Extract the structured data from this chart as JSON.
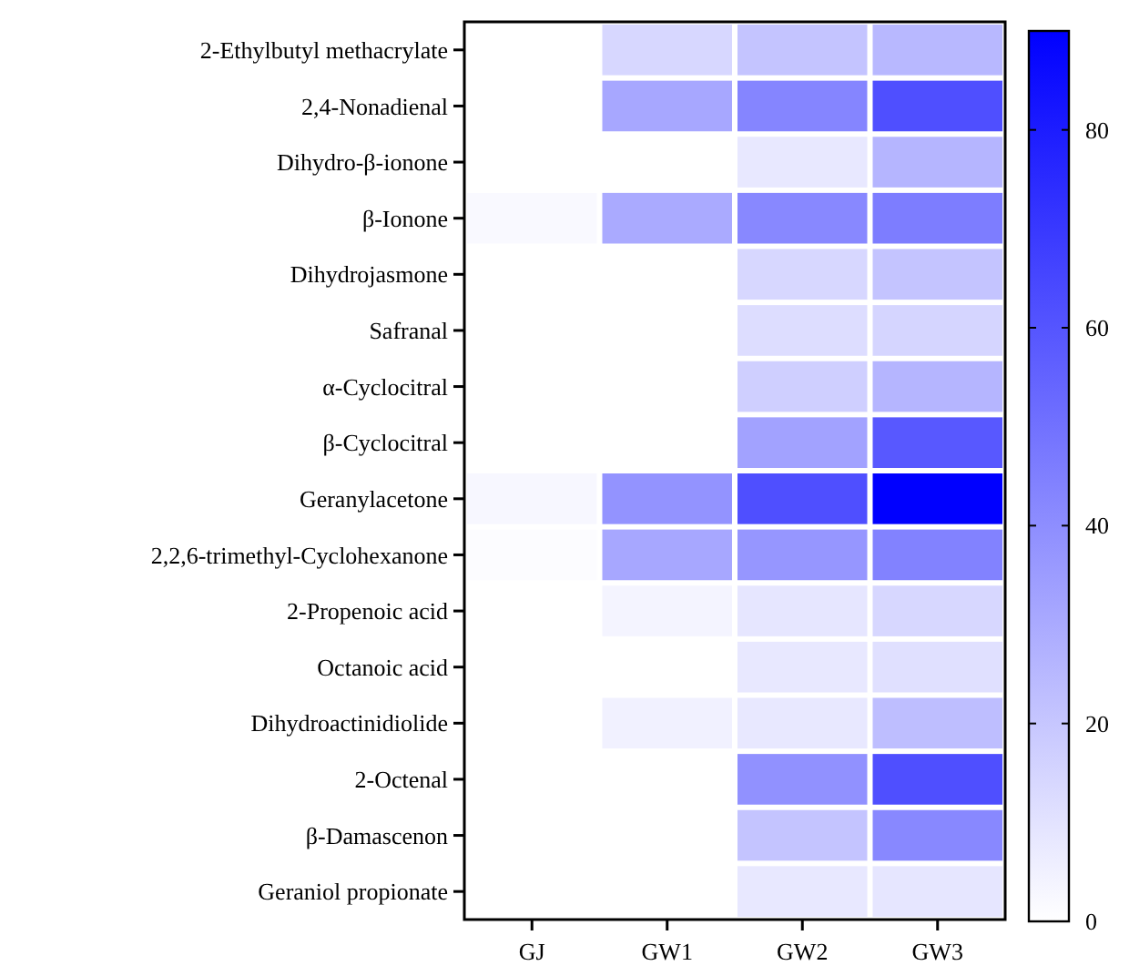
{
  "chart_data": {
    "type": "heatmap",
    "categories": [
      "GJ",
      "GW1",
      "GW2",
      "GW3"
    ],
    "y_categories": [
      "2-Ethylbutyl methacrylate",
      "2,4-Nonadienal",
      "Dihydro-β-ionone",
      "β-Ionone",
      "Dihydrojasmone",
      "Safranal",
      "α-Cyclocitral",
      "β-Cyclocitral",
      "Geranylacetone",
      "2,2,6-trimethyl-Cyclohexanone",
      "2-Propenoic acid",
      "Octanoic acid",
      "Dihydroactinidiolide",
      "2-Octenal",
      "β-Damascenon",
      "Geraniol propionate"
    ],
    "cells": [
      [
        0,
        14,
        21,
        25
      ],
      [
        0,
        31,
        43,
        62
      ],
      [
        0,
        0,
        8,
        26
      ],
      [
        2,
        30,
        42,
        46
      ],
      [
        0,
        0,
        14,
        21
      ],
      [
        0,
        0,
        12,
        15
      ],
      [
        0,
        0,
        17,
        26
      ],
      [
        0,
        0,
        33,
        59
      ],
      [
        3,
        38,
        62,
        90
      ],
      [
        1,
        31,
        37,
        44
      ],
      [
        0,
        4,
        9,
        14
      ],
      [
        0,
        0,
        8,
        11
      ],
      [
        0,
        5,
        8,
        23
      ],
      [
        0,
        0,
        39,
        62
      ],
      [
        0,
        0,
        21,
        42
      ],
      [
        0,
        0,
        8,
        9
      ]
    ],
    "clim": [
      0,
      90
    ],
    "cticks": [
      0,
      20,
      40,
      60,
      80
    ]
  }
}
